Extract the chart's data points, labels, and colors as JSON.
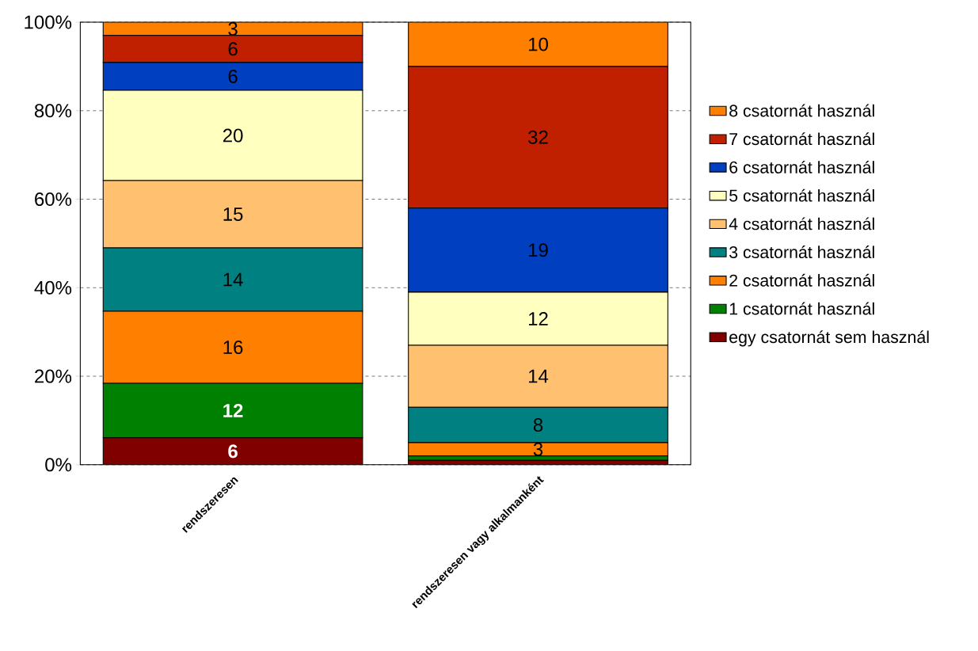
{
  "chart_data": {
    "type": "bar",
    "stacked": true,
    "categories": [
      "rendszeresen",
      "rendszeresen vagy alkalmanként"
    ],
    "series": [
      {
        "name": "egy csatornát sem használ",
        "color": "#800000",
        "values": [
          6.1,
          1.0
        ],
        "value_labels": [
          "6",
          null
        ]
      },
      {
        "name": "1 csatornát használ",
        "color": "#008000",
        "values": [
          12.3,
          1.0
        ],
        "value_labels": [
          "12",
          null
        ]
      },
      {
        "name": "2 csatornát használ",
        "color": "#ff8000",
        "values": [
          16.3,
          3.0
        ],
        "value_labels": [
          "16",
          "3"
        ]
      },
      {
        "name": "3 csatornát használ",
        "color": "#008080",
        "values": [
          14.3,
          8.0
        ],
        "value_labels": [
          "14",
          "8"
        ]
      },
      {
        "name": "4 csatornát használ",
        "color": "#ffc070",
        "values": [
          15.2,
          14.0
        ],
        "value_labels": [
          "15",
          "14"
        ]
      },
      {
        "name": "5 csatornát használ",
        "color": "#ffffc0",
        "values": [
          20.4,
          12.0
        ],
        "value_labels": [
          "20",
          "12"
        ]
      },
      {
        "name": "6 csatornát használ",
        "color": "#0040c0",
        "values": [
          6.3,
          19.0
        ],
        "value_labels": [
          "6",
          "19"
        ]
      },
      {
        "name": "7 csatornát használ",
        "color": "#c02000",
        "values": [
          6.1,
          32.0
        ],
        "value_labels": [
          "6",
          "32"
        ]
      },
      {
        "name": "8 csatornát használ",
        "color": "#ff8000",
        "values": [
          3.0,
          10.0
        ],
        "value_labels": [
          "3",
          "10"
        ]
      }
    ],
    "ylim": [
      0,
      100
    ],
    "yticks": [
      {
        "value": 0,
        "label": "0%"
      },
      {
        "value": 20,
        "label": "20%"
      },
      {
        "value": 40,
        "label": "40%"
      },
      {
        "value": 60,
        "label": "60%"
      },
      {
        "value": 80,
        "label": "80%"
      },
      {
        "value": 100,
        "label": "100%"
      }
    ],
    "grid": "y",
    "legend": "right"
  }
}
